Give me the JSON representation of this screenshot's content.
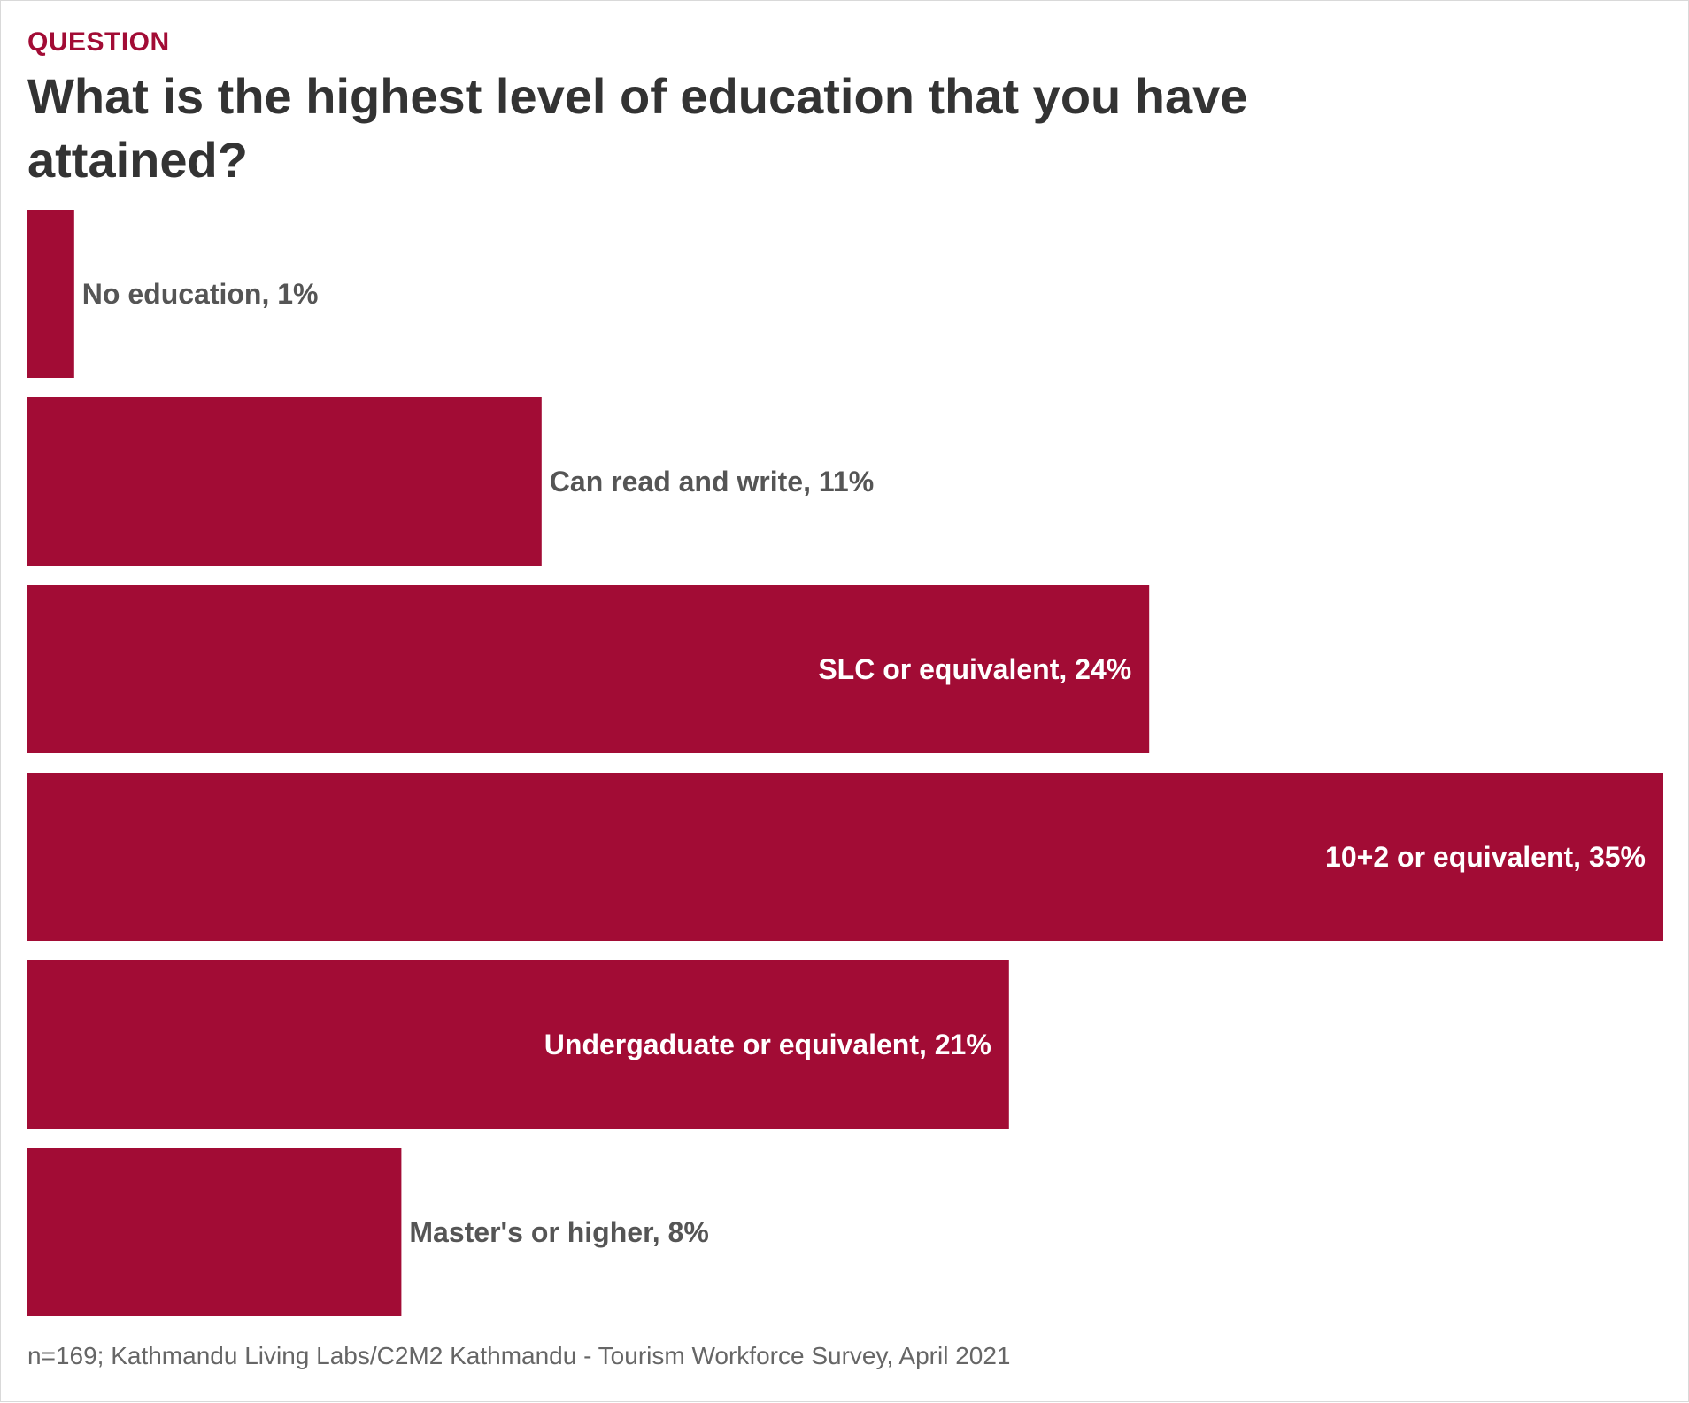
{
  "header": {
    "kicker": "QUESTION",
    "title": "What is the highest level of education that you have attained?"
  },
  "colors": {
    "bar": "#a20c35",
    "kicker": "#a20c35",
    "label_outside": "#555555",
    "label_inside": "#ffffff",
    "title": "#333333",
    "source": "#666666"
  },
  "chart_data": {
    "type": "bar",
    "orientation": "horizontal",
    "title": "What is the highest level of education that you have attained?",
    "categories": [
      "No education",
      "Can read and write",
      "SLC or equivalent",
      "10+2 or equivalent",
      "Undergaduate or equivalent",
      "Master's or higher"
    ],
    "values": [
      1,
      11,
      24,
      35,
      21,
      8
    ],
    "labels": [
      "No education, 1%",
      "Can read and write, 11%",
      "SLC or equivalent, 24%",
      "10+2 or equivalent, 35%",
      "Undergaduate or equivalent, 21%",
      "Master's or higher, 8%"
    ],
    "label_inside": [
      false,
      false,
      true,
      true,
      true,
      false
    ],
    "unit": "%",
    "xlim": [
      0,
      35
    ],
    "grid": false,
    "axes_visible": false
  },
  "footer": {
    "source": "n=169; Kathmandu Living Labs/C2M2 Kathmandu - Tourism Workforce Survey, April 2021"
  }
}
